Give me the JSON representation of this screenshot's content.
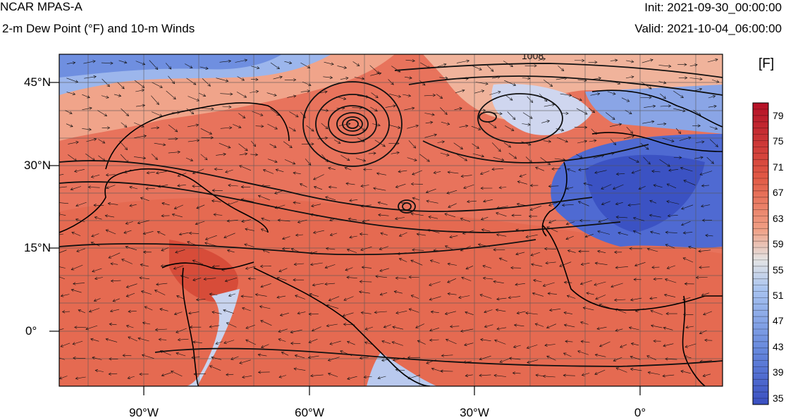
{
  "header": {
    "title": "NCAR MPAS-A",
    "subtitle": "2-m Dew Point (°F) and 10-m Winds",
    "init": "Init: 2021-09-30_00:00:00",
    "valid": "Valid: 2021-10-04_06:00:00"
  },
  "axes": {
    "lat_labels": [
      "45°N",
      "30°N",
      "15°N",
      "0°"
    ],
    "lon_labels": [
      "90°W",
      "60°W",
      "30°W",
      "0°"
    ]
  },
  "map": {
    "contour_label": "1008",
    "lon_range": [
      -105,
      15
    ],
    "lat_range": [
      -10,
      50
    ]
  },
  "colorbar": {
    "unit": "[F]",
    "tick_labels": [
      "79",
      "75",
      "71",
      "67",
      "63",
      "59",
      "55",
      "51",
      "47",
      "43",
      "39",
      "35"
    ],
    "colors": {
      "low": "#3a4fc1",
      "mid_low": "#8fb0ee",
      "mid": "#dcdcdc",
      "mid_high": "#ee8a6c",
      "high": "#b41026"
    }
  }
}
